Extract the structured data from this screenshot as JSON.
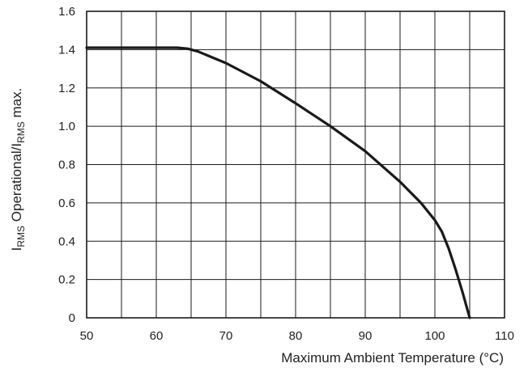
{
  "chart_data": {
    "type": "line",
    "title": "",
    "xlabel": "Maximum Ambient Temperature (°C)",
    "ylabel": {
      "i1": "I",
      "s1": "RMS",
      "mid": " Operational/I",
      "s2": "RMS",
      "end": " max."
    },
    "xlim": [
      50,
      110
    ],
    "ylim": [
      0,
      1.6
    ],
    "x_ticks": [
      50,
      60,
      70,
      80,
      90,
      100,
      110
    ],
    "y_ticks": [
      0,
      0.2,
      0.4,
      0.6,
      0.8,
      1.0,
      1.2,
      1.4,
      1.6
    ],
    "x_tick_labels": [
      "50",
      "60",
      "70",
      "80",
      "90",
      "100",
      "110"
    ],
    "y_tick_labels": [
      "0",
      "0.2",
      "0.4",
      "0.6",
      "0.8",
      "1.0",
      "1.2",
      "1.4",
      "1.6"
    ],
    "x_grid_step": 5,
    "y_grid_step": 0.2,
    "grid": true,
    "series": [
      {
        "x": [
          50,
          55,
          60,
          63,
          64.5,
          66,
          68,
          70,
          75,
          80,
          85,
          90,
          95,
          98,
          100,
          101,
          102,
          103,
          104,
          105
        ],
        "values": [
          1.41,
          1.41,
          1.41,
          1.41,
          1.405,
          1.39,
          1.36,
          1.33,
          1.235,
          1.12,
          1.0,
          0.87,
          0.71,
          0.6,
          0.51,
          0.45,
          0.36,
          0.25,
          0.13,
          0.0
        ]
      }
    ],
    "colors": {
      "line": "#1a1a1a",
      "grid": "#1a1a1a"
    }
  }
}
